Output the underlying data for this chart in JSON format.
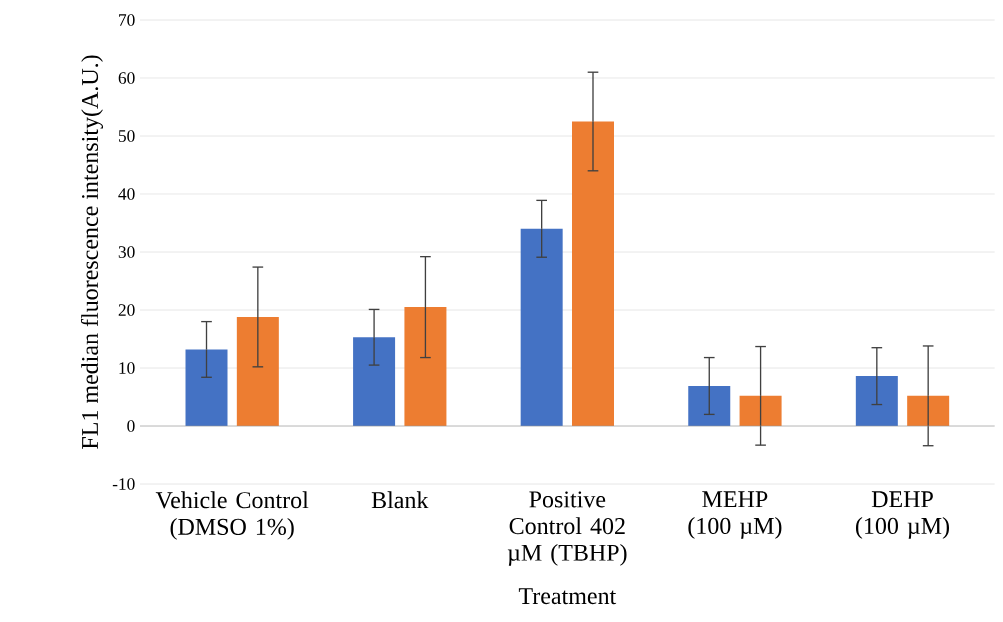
{
  "chart_data": {
    "type": "bar",
    "categories": [
      "Vehicle Control (DMSO 1%)",
      "Blank",
      "Positive Control 402 µM (TBHP)",
      "MEHP (100 µM)",
      "DEHP (100 µM)"
    ],
    "series": [
      {
        "color": "#4472c4",
        "values": [
          13.2,
          15.3,
          34,
          6.9,
          8.6
        ],
        "errors": [
          4.8,
          4.8,
          4.9,
          4.9,
          4.9
        ]
      },
      {
        "color": "#ed7d31",
        "values": [
          18.8,
          20.5,
          52.5,
          5.2,
          5.2
        ],
        "errors": [
          8.6,
          8.7,
          8.5,
          8.5,
          8.6
        ]
      }
    ],
    "xlabel": "Treatment",
    "ylabel": "FL1 median fluorescence intensity(A.U.)",
    "ylim": [
      -10,
      70
    ],
    "yticks": [
      -10,
      0,
      10,
      20,
      30,
      40,
      50,
      60,
      70
    ],
    "grid": "y"
  }
}
